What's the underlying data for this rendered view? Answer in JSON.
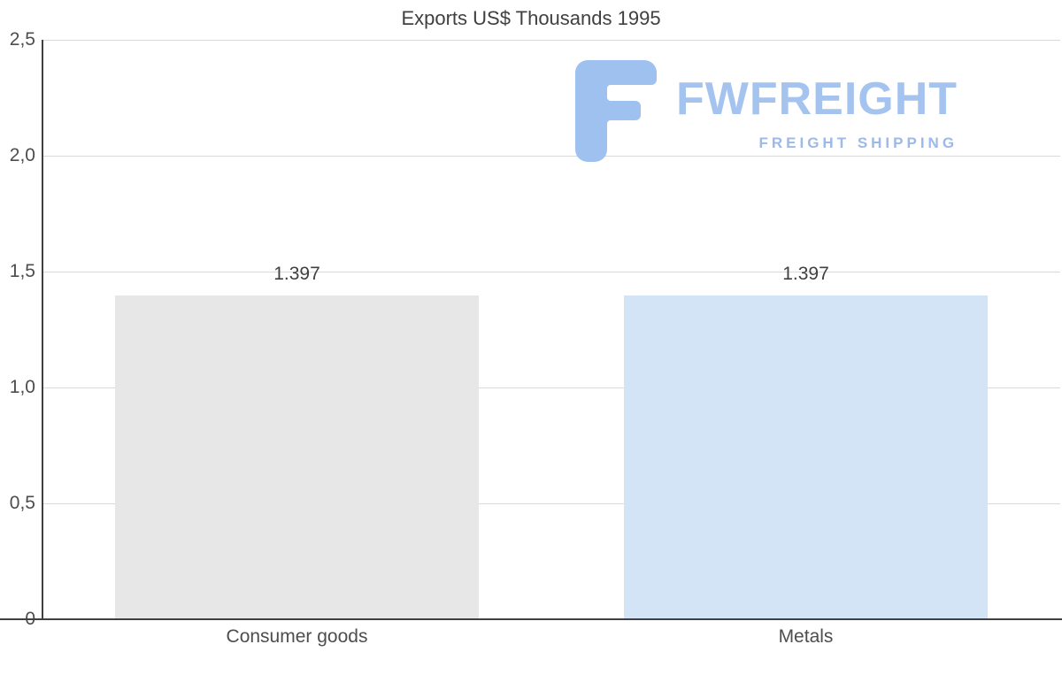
{
  "chart_data": {
    "type": "bar",
    "title": "Exports US$ Thousands 1995",
    "categories": [
      "Consumer goods",
      "Metals"
    ],
    "values": [
      1.397,
      1.397
    ],
    "value_labels": [
      "1.397",
      "1.397"
    ],
    "bar_colors": [
      "#e7e7e7",
      "#d2e4f6"
    ],
    "ylim": [
      0,
      2.5
    ],
    "yticks": [
      0,
      0.5,
      1.0,
      1.5,
      2.0,
      2.5
    ],
    "ytick_labels": [
      "0",
      "0,5",
      "1,0",
      "1,5",
      "2,0",
      "2,5"
    ],
    "xlabel": "",
    "ylabel": "",
    "grid": true,
    "legend": "none"
  },
  "watermark": {
    "brand": "FWFREIGHT",
    "tagline": "FREIGHT SHIPPING",
    "icon": "fwfreight-f-logo-icon",
    "icon_color": "#9ec1f0",
    "text_color": "#a5c3ef"
  },
  "colors": {
    "axis": "#404040",
    "grid": "#d9d9d9",
    "title_text": "#404040",
    "tick_text": "#4d4d4d",
    "background": "#ffffff"
  }
}
